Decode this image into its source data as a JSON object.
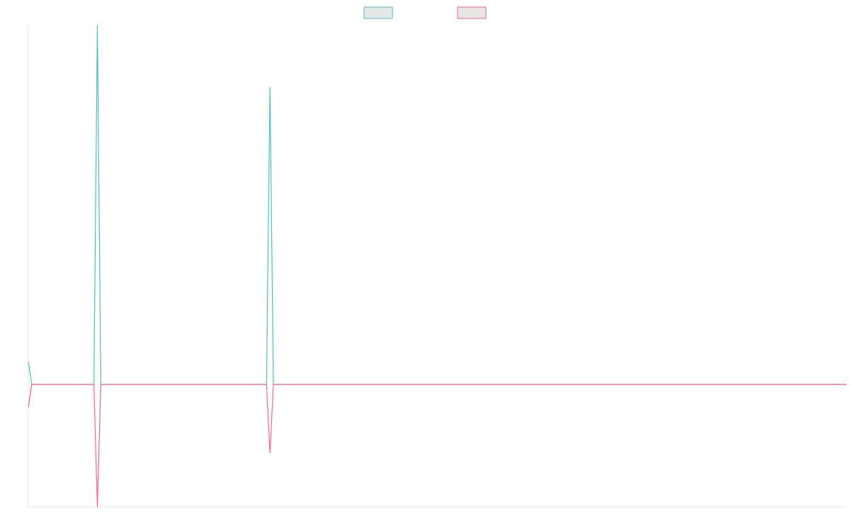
{
  "chart_data": {
    "type": "line",
    "x": [
      0,
      1,
      19,
      20,
      21,
      69,
      70,
      71,
      237
    ],
    "series": [
      {
        "color": "#4bc0c0",
        "values": [
          32,
          0,
          0,
          507,
          0,
          0,
          420,
          0,
          0
        ]
      },
      {
        "color": "#ff6384",
        "values": [
          -32,
          0,
          0,
          -173,
          0,
          0,
          -97,
          0,
          0
        ]
      }
    ],
    "xlim": [
      0,
      237
    ],
    "ylim": [
      -173,
      507
    ],
    "grid": false,
    "legend": "top"
  }
}
